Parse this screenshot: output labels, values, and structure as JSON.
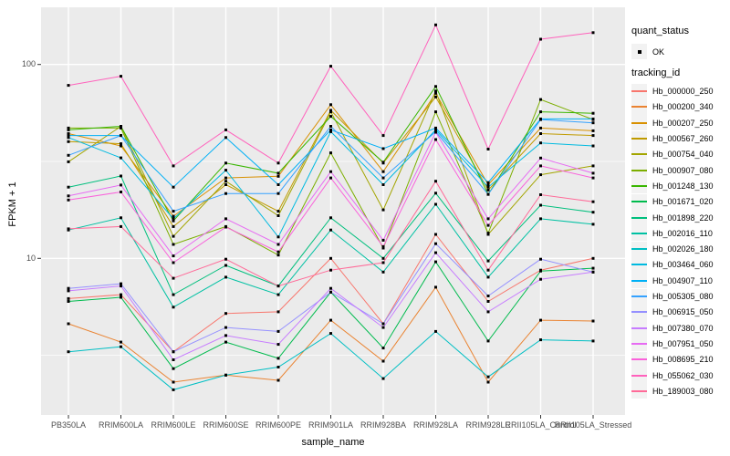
{
  "figure": {
    "y_axis_title": "FPKM + 1",
    "x_axis_title": "sample_name",
    "y_tick_labels": [
      "100",
      "10"
    ]
  },
  "legend": {
    "quant_status_title": "quant_status",
    "quant_status_items": [
      {
        "label": "OK",
        "marker": "black-point"
      }
    ],
    "tracking_id_title": "tracking_id"
  },
  "colors": {
    "panel_background": "#EBEBEB",
    "gridline": "#FFFFFF",
    "tick_text": "#4D4D4D",
    "tick_mark": "#333333",
    "point": "#000000",
    "legend_key_background": "#F2F2F2"
  },
  "chart_data": {
    "type": "line",
    "title": "",
    "xlabel": "sample_name",
    "ylabel": "FPKM + 1",
    "y_scale": "log10",
    "y_ticks": [
      100,
      10
    ],
    "y_minor_breaks": [
      31.623,
      3.1623
    ],
    "ylim": [
      1.56,
      197
    ],
    "grid": true,
    "legend_position": "right",
    "marker": {
      "shape": "square",
      "color": "#000000",
      "size": 3
    },
    "quant_status": "OK",
    "categories": [
      "PB350LA",
      "RRIM600LA",
      "RRIM600LE",
      "RRIM600SE",
      "RRIM600PE",
      "RRIM901LA",
      "RRIM928BA",
      "RRIM928LA",
      "RRIM928LE",
      "RRII105LA_Control",
      "RRII105LA_Stressed"
    ],
    "series": [
      {
        "name": "Hb_000000_250",
        "color": "#F8766D",
        "values": [
          6.2,
          6.5,
          3.3,
          5.2,
          5.3,
          10,
          4.6,
          13.3,
          6.0,
          8.7,
          10
        ]
      },
      {
        "name": "Hb_000200_340",
        "color": "#EA8331",
        "values": [
          4.6,
          3.7,
          2.3,
          2.5,
          2.35,
          4.8,
          2.95,
          7.1,
          2.3,
          4.8,
          4.75
        ]
      },
      {
        "name": "Hb_000207_250",
        "color": "#D89000",
        "values": [
          44,
          38,
          16.5,
          26,
          26.5,
          62,
          28,
          71,
          24,
          47,
          45.5
        ]
      },
      {
        "name": "Hb_000567_260",
        "color": "#C09B00",
        "values": [
          40,
          39,
          14.6,
          24,
          17.5,
          58,
          31,
          68,
          22.5,
          44,
          43
        ]
      },
      {
        "name": "Hb_000754_040",
        "color": "#A3A500",
        "values": [
          31.5,
          48,
          13,
          25,
          16.6,
          57,
          17.8,
          73,
          13.3,
          27,
          30
        ]
      },
      {
        "name": "Hb_000907_080",
        "color": "#7CAE00",
        "values": [
          47,
          47,
          11.8,
          14.6,
          10.4,
          35,
          11.3,
          57,
          13.5,
          66,
          52
        ]
      },
      {
        "name": "Hb_001248_130",
        "color": "#39B600",
        "values": [
          46,
          48,
          15.6,
          31,
          27.5,
          54,
          31.3,
          77,
          21.4,
          57,
          56
        ]
      },
      {
        "name": "Hb_001671_020",
        "color": "#00BB4E",
        "values": [
          6.0,
          6.3,
          2.7,
          3.7,
          3.05,
          6.7,
          3.45,
          9.6,
          3.75,
          8.6,
          8.9
        ]
      },
      {
        "name": "Hb_001898_220",
        "color": "#00BF7D",
        "values": [
          23.3,
          26.6,
          6.5,
          9.2,
          7.2,
          16.2,
          10.0,
          21.7,
          9.7,
          18.8,
          17.3
        ]
      },
      {
        "name": "Hb_002016_110",
        "color": "#00C1A3",
        "values": [
          14.0,
          16.2,
          5.6,
          8.0,
          6.5,
          14,
          8.5,
          19,
          8.0,
          16,
          15
        ]
      },
      {
        "name": "Hb_002026_180",
        "color": "#00BFC4",
        "values": [
          3.3,
          3.5,
          2.1,
          2.5,
          2.75,
          4.1,
          2.4,
          4.2,
          2.45,
          3.8,
          3.75
        ]
      },
      {
        "name": "Hb_003464_060",
        "color": "#00BAE0",
        "values": [
          42,
          33,
          16,
          28.5,
          12.9,
          45,
          24,
          46,
          23.3,
          39.4,
          38
        ]
      },
      {
        "name": "Hb_004907_110",
        "color": "#00B0F6",
        "values": [
          43,
          43,
          23.3,
          42,
          24,
          46,
          36.8,
          47,
          24.6,
          52.4,
          52.4
        ]
      },
      {
        "name": "Hb_005305_080",
        "color": "#35A2FF",
        "values": [
          34,
          43,
          17.5,
          21.6,
          21.6,
          48,
          26,
          45,
          21.4,
          52,
          50
        ]
      },
      {
        "name": "Hb_006915_050",
        "color": "#9590FF",
        "values": [
          7.0,
          7.4,
          3.3,
          4.4,
          4.2,
          6.7,
          4.6,
          11.9,
          6.4,
          9.9,
          8.5
        ]
      },
      {
        "name": "Hb_007380_070",
        "color": "#C77CFF",
        "values": [
          6.8,
          7.2,
          3.0,
          4.0,
          3.6,
          7.0,
          4.4,
          10.7,
          5.3,
          7.8,
          8.5
        ]
      },
      {
        "name": "Hb_007951_050",
        "color": "#E76BF3",
        "values": [
          21,
          23.9,
          10.3,
          16,
          11.8,
          28,
          12.4,
          44.7,
          16,
          32.9,
          27.5
        ]
      },
      {
        "name": "Hb_008695_210",
        "color": "#FA62DB",
        "values": [
          20,
          22,
          9.5,
          14.5,
          10.8,
          26,
          11.5,
          41,
          14.8,
          30,
          26
        ]
      },
      {
        "name": "Hb_055062_030",
        "color": "#FF62BC",
        "values": [
          78,
          87,
          30,
          46,
          31,
          98,
          43,
          160,
          36.6,
          135,
          146
        ]
      },
      {
        "name": "Hb_189003_080",
        "color": "#FF6A98",
        "values": [
          14.2,
          14.6,
          7.9,
          9.9,
          7.2,
          8.7,
          9.5,
          25,
          8.7,
          21.3,
          19.6
        ]
      }
    ]
  }
}
